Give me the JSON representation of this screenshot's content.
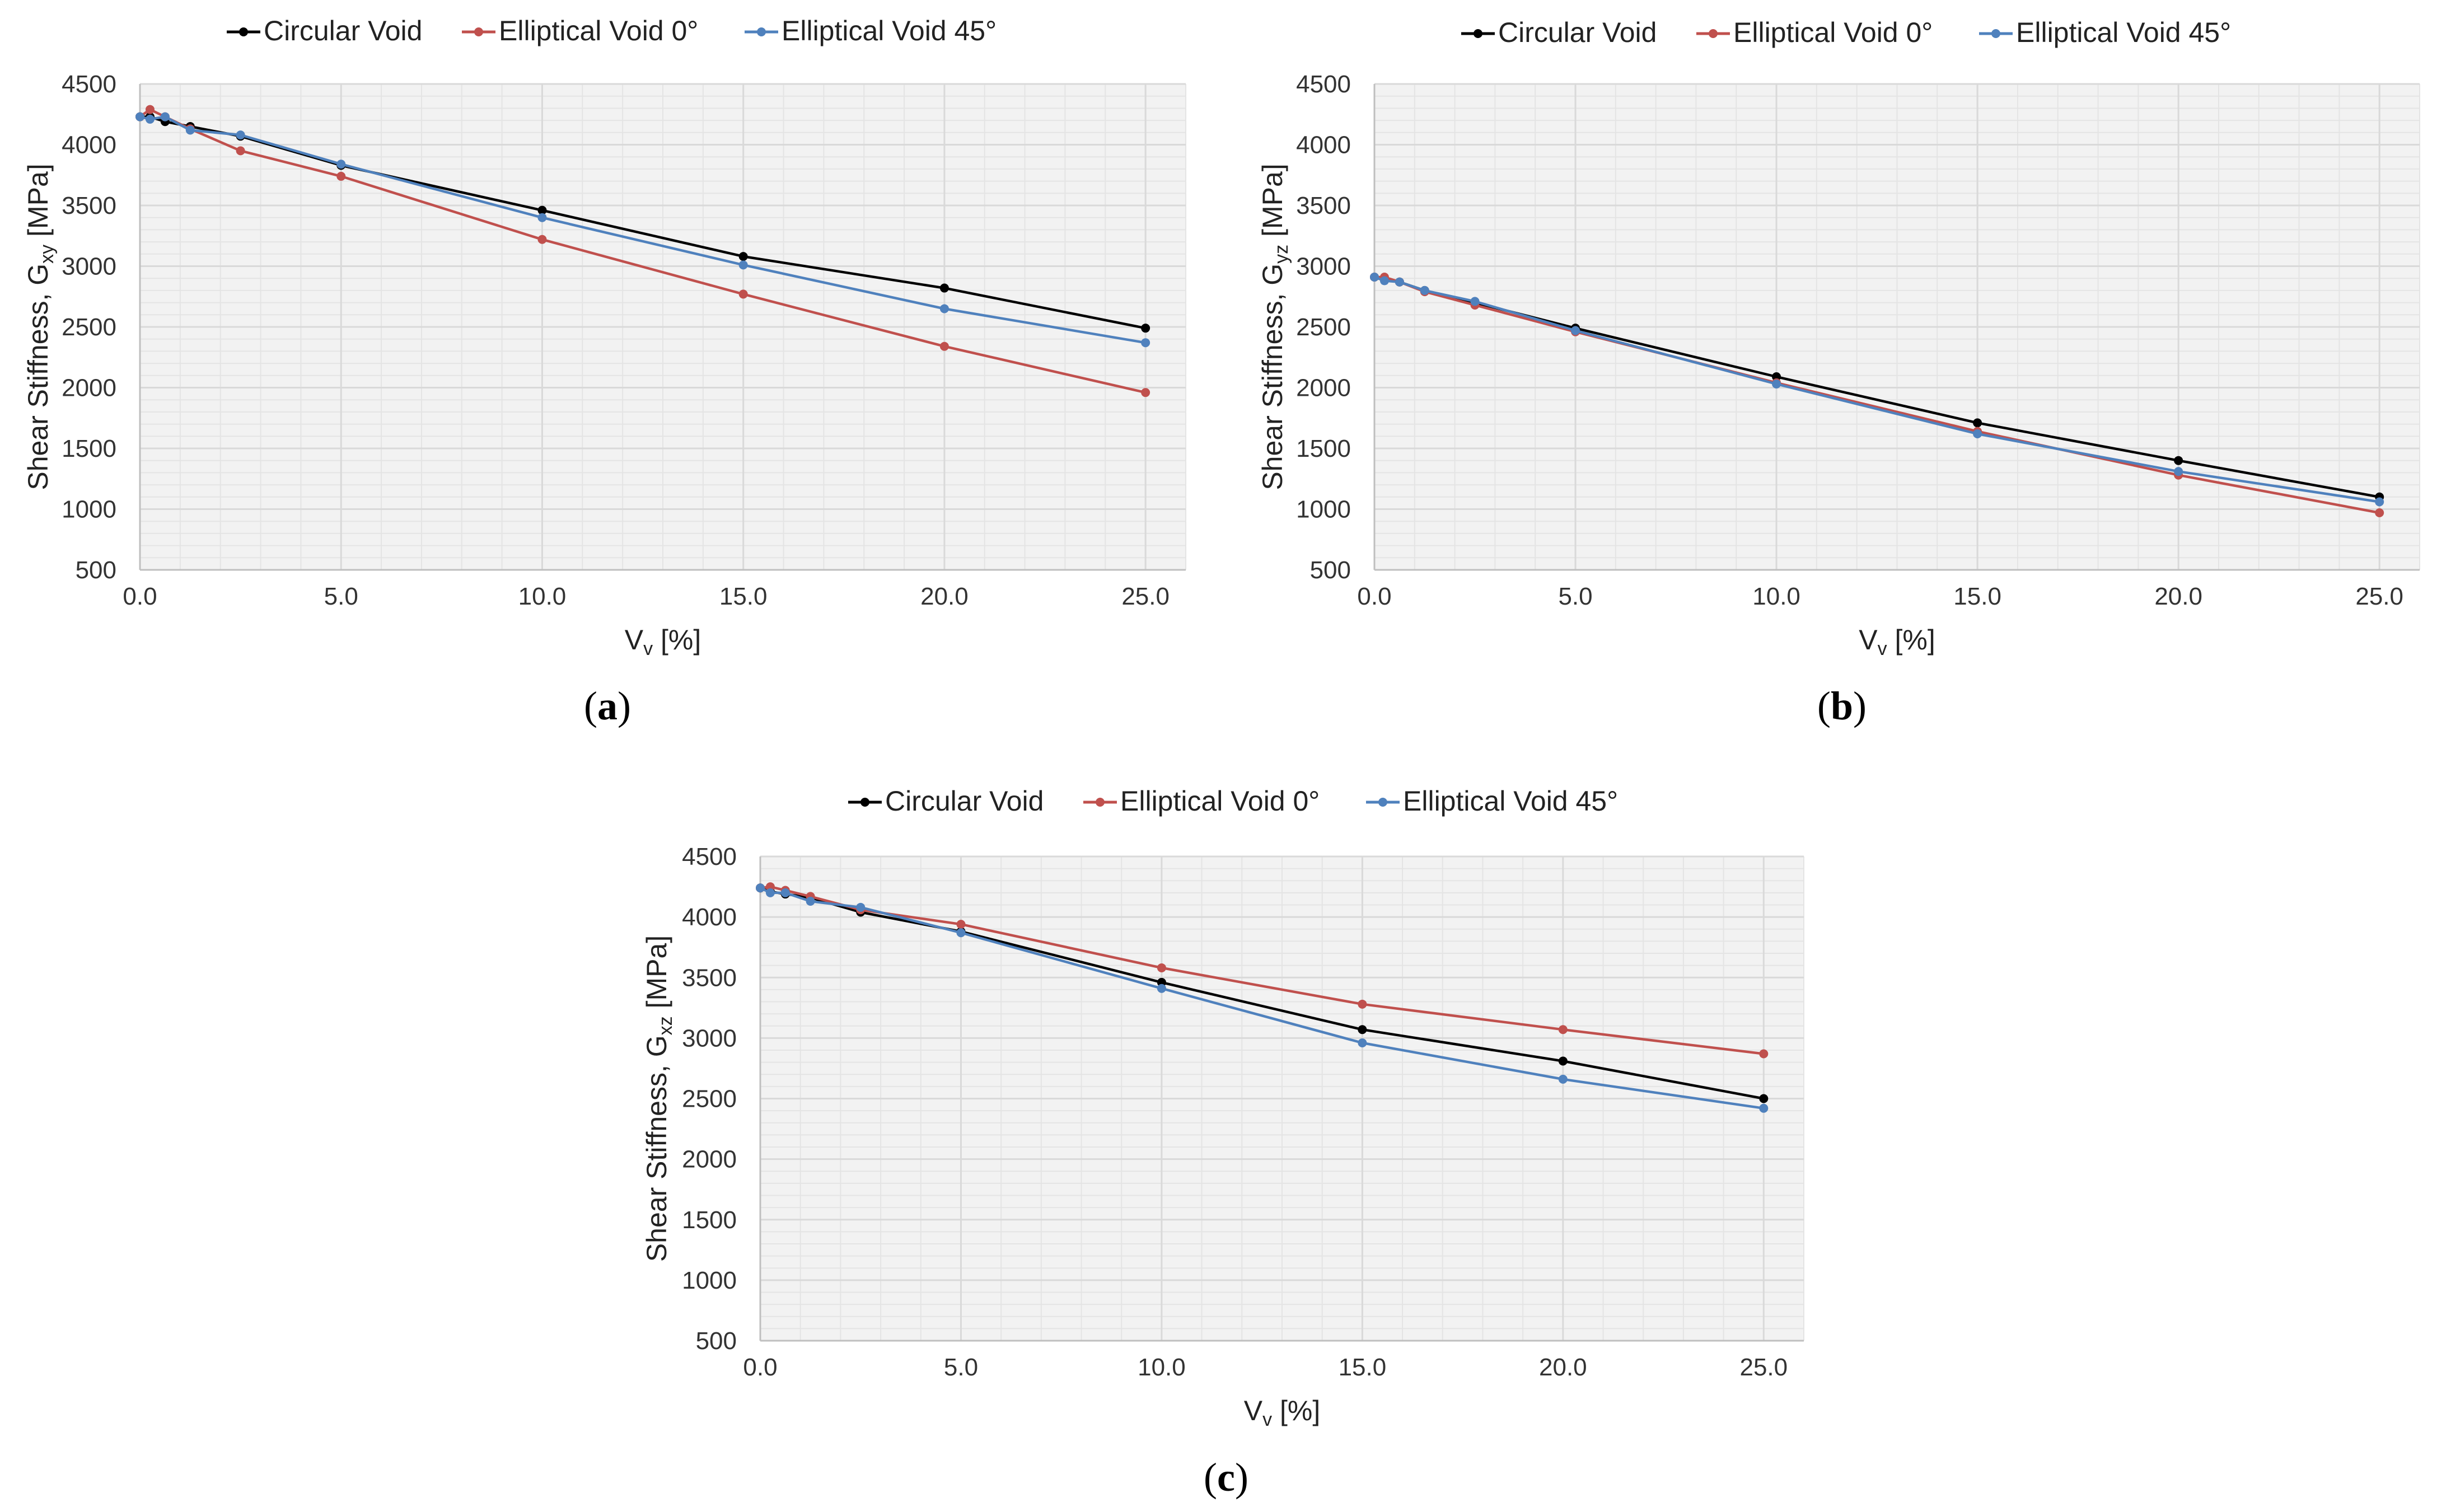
{
  "colors": {
    "circular": "#000000",
    "elliptical_0": "#c0504d",
    "elliptical_45": "#4f81bd",
    "plot_bg": "#f2f2f2",
    "grid": "#d9d9d9",
    "axis": "#bfbfbf"
  },
  "chart_data": [
    {
      "type": "line",
      "panel_label_open": "(",
      "panel_label_letter": "a",
      "panel_label_close": ")",
      "xlabel_main": "V",
      "xlabel_sub": "v",
      "xlabel_rest": " [%]",
      "ylabel_main": "Shear Stiffness, G",
      "ylabel_sub": "xy",
      "ylabel_rest": " [MPa]",
      "xlim": [
        0,
        26
      ],
      "ylim": [
        500,
        4500
      ],
      "xticks": [
        0,
        5,
        10,
        15,
        20,
        25
      ],
      "xtick_labels": [
        "0.0",
        "5.0",
        "10.0",
        "15.0",
        "20.0",
        "25.0"
      ],
      "yticks": [
        500,
        1000,
        1500,
        2000,
        2500,
        3000,
        3500,
        4000,
        4500
      ],
      "ytick_labels": [
        "500",
        "1000",
        "1500",
        "2000",
        "2500",
        "3000",
        "3500",
        "4000",
        "4500"
      ],
      "grid": true,
      "legend_position": "top",
      "series": [
        {
          "name": "Circular Void",
          "color_key": "circular",
          "x": [
            0,
            0.25,
            0.625,
            1.25,
            2.5,
            5,
            10,
            15,
            20,
            25
          ],
          "y": [
            4230,
            4230,
            4190,
            4150,
            4070,
            3830,
            3460,
            3080,
            2820,
            2490
          ]
        },
        {
          "name": "Elliptical Void 0°",
          "color_key": "elliptical_0",
          "x": [
            0,
            0.25,
            0.625,
            1.25,
            2.5,
            5,
            10,
            15,
            20,
            25
          ],
          "y": [
            4230,
            4290,
            4230,
            4130,
            3950,
            3740,
            3220,
            2770,
            2340,
            1960
          ]
        },
        {
          "name": "Elliptical Void 45°",
          "color_key": "elliptical_45",
          "x": [
            0,
            0.25,
            0.625,
            1.25,
            2.5,
            5,
            10,
            15,
            20,
            25
          ],
          "y": [
            4230,
            4210,
            4230,
            4120,
            4080,
            3840,
            3400,
            3010,
            2650,
            2370
          ]
        }
      ]
    },
    {
      "type": "line",
      "panel_label_open": "(",
      "panel_label_letter": "b",
      "panel_label_close": ")",
      "xlabel_main": "V",
      "xlabel_sub": "v",
      "xlabel_rest": " [%]",
      "ylabel_main": "Shear Stiffness, G",
      "ylabel_sub": "yz",
      "ylabel_rest": " [MPa]",
      "xlim": [
        0,
        26
      ],
      "ylim": [
        500,
        4500
      ],
      "xticks": [
        0,
        5,
        10,
        15,
        20,
        25
      ],
      "xtick_labels": [
        "0.0",
        "5.0",
        "10.0",
        "15.0",
        "20.0",
        "25.0"
      ],
      "yticks": [
        500,
        1000,
        1500,
        2000,
        2500,
        3000,
        3500,
        4000,
        4500
      ],
      "ytick_labels": [
        "500",
        "1000",
        "1500",
        "2000",
        "2500",
        "3000",
        "3500",
        "4000",
        "4500"
      ],
      "grid": true,
      "legend_position": "top",
      "series": [
        {
          "name": "Circular Void",
          "color_key": "circular",
          "x": [
            0,
            0.25,
            0.625,
            1.25,
            2.5,
            5,
            10,
            15,
            20,
            25
          ],
          "y": [
            2910,
            2890,
            2870,
            2800,
            2700,
            2490,
            2090,
            1710,
            1400,
            1100
          ]
        },
        {
          "name": "Elliptical Void 0°",
          "color_key": "elliptical_0",
          "x": [
            0,
            0.25,
            0.625,
            1.25,
            2.5,
            5,
            10,
            15,
            20,
            25
          ],
          "y": [
            2910,
            2910,
            2870,
            2790,
            2680,
            2460,
            2040,
            1640,
            1280,
            970
          ]
        },
        {
          "name": "Elliptical Void 45°",
          "color_key": "elliptical_45",
          "x": [
            0,
            0.25,
            0.625,
            1.25,
            2.5,
            5,
            10,
            15,
            20,
            25
          ],
          "y": [
            2910,
            2880,
            2870,
            2800,
            2710,
            2470,
            2030,
            1620,
            1310,
            1060
          ]
        }
      ]
    },
    {
      "type": "line",
      "panel_label_open": "(",
      "panel_label_letter": "c",
      "panel_label_close": ")",
      "xlabel_main": "V",
      "xlabel_sub": "v",
      "xlabel_rest": " [%]",
      "ylabel_main": "Shear Stiffness, G",
      "ylabel_sub": "xz",
      "ylabel_rest": " [MPa]",
      "xlim": [
        0,
        26
      ],
      "ylim": [
        500,
        4500
      ],
      "xticks": [
        0,
        5,
        10,
        15,
        20,
        25
      ],
      "xtick_labels": [
        "0.0",
        "5.0",
        "10.0",
        "15.0",
        "20.0",
        "25.0"
      ],
      "yticks": [
        500,
        1000,
        1500,
        2000,
        2500,
        3000,
        3500,
        4000,
        4500
      ],
      "ytick_labels": [
        "500",
        "1000",
        "1500",
        "2000",
        "2500",
        "3000",
        "3500",
        "4000",
        "4500"
      ],
      "grid": true,
      "legend_position": "top",
      "series": [
        {
          "name": "Circular Void",
          "color_key": "circular",
          "x": [
            0,
            0.25,
            0.625,
            1.25,
            2.5,
            5,
            10,
            15,
            20,
            25
          ],
          "y": [
            4240,
            4210,
            4190,
            4160,
            4040,
            3880,
            3460,
            3070,
            2810,
            2500
          ]
        },
        {
          "name": "Elliptical Void 0°",
          "color_key": "elliptical_0",
          "x": [
            0,
            0.25,
            0.625,
            1.25,
            2.5,
            5,
            10,
            15,
            20,
            25
          ],
          "y": [
            4240,
            4250,
            4220,
            4170,
            4060,
            3940,
            3580,
            3280,
            3070,
            2870
          ]
        },
        {
          "name": "Elliptical Void 45°",
          "color_key": "elliptical_45",
          "x": [
            0,
            0.25,
            0.625,
            1.25,
            2.5,
            5,
            10,
            15,
            20,
            25
          ],
          "y": [
            4240,
            4200,
            4200,
            4130,
            4080,
            3870,
            3410,
            2960,
            2660,
            2420
          ]
        }
      ]
    }
  ]
}
